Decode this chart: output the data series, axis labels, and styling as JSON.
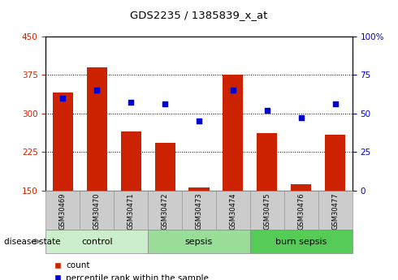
{
  "title": "GDS2235 / 1385839_x_at",
  "samples": [
    "GSM30469",
    "GSM30470",
    "GSM30471",
    "GSM30472",
    "GSM30473",
    "GSM30474",
    "GSM30475",
    "GSM30476",
    "GSM30477"
  ],
  "bar_values": [
    340,
    390,
    265,
    242,
    155,
    375,
    262,
    162,
    258
  ],
  "blue_dot_values": [
    60,
    65,
    57,
    56,
    45,
    65,
    52,
    47,
    56
  ],
  "ylim_left": [
    150,
    450
  ],
  "ylim_right": [
    0,
    100
  ],
  "yticks_left": [
    150,
    225,
    300,
    375,
    450
  ],
  "yticks_right": [
    0,
    25,
    50,
    75,
    100
  ],
  "bar_color": "#cc2200",
  "dot_color": "#0000cc",
  "bar_bottom": 150,
  "groups": [
    {
      "label": "control",
      "indices": [
        0,
        1,
        2
      ]
    },
    {
      "label": "sepsis",
      "indices": [
        3,
        4,
        5
      ]
    },
    {
      "label": "burn sepsis",
      "indices": [
        6,
        7,
        8
      ]
    }
  ],
  "group_colors": [
    "#cceecc",
    "#99dd99",
    "#55cc55"
  ],
  "disease_state_label": "disease state",
  "legend_count_label": "count",
  "legend_percentile_label": "percentile rank within the sample",
  "tick_label_color_left": "#cc2200",
  "tick_label_color_right": "#0000cc",
  "xtick_bg_color": "#cccccc",
  "xtick_edge_color": "#999999"
}
